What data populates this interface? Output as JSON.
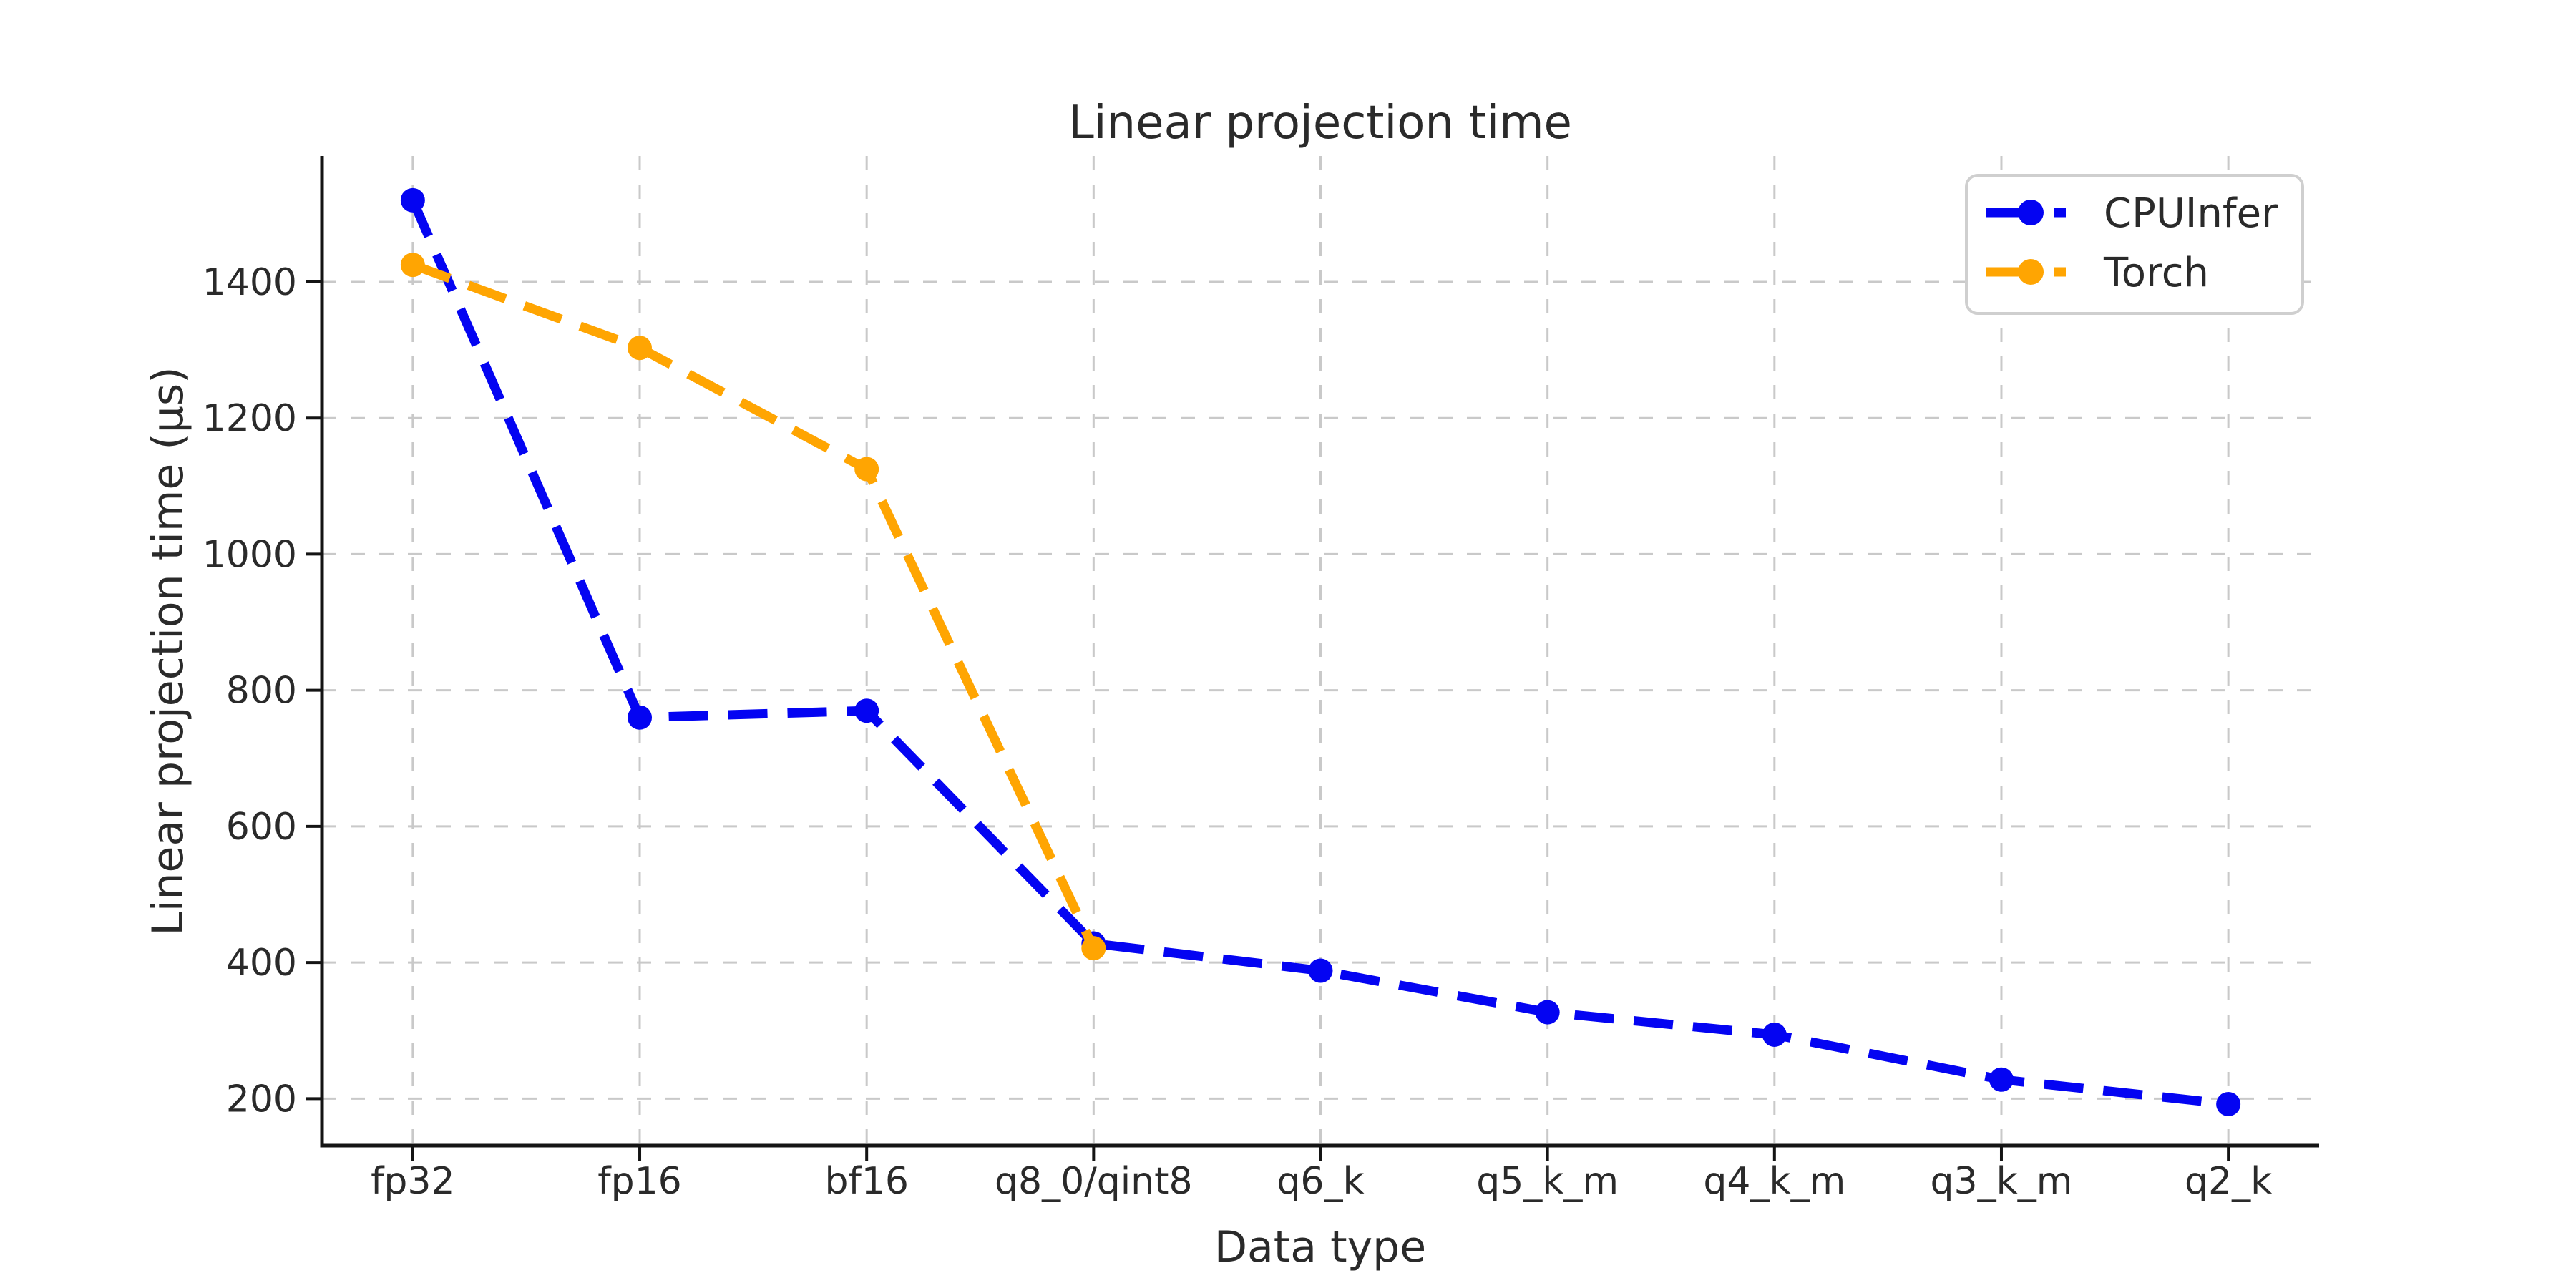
{
  "chart_data": {
    "type": "line",
    "title": "Linear projection time",
    "xlabel": "Data type",
    "ylabel": "Linear projection time (µs)",
    "categories": [
      "fp32",
      "fp16",
      "bf16",
      "q8_0/qint8",
      "q6_k",
      "q5_k_m",
      "q4_k_m",
      "q3_k_m",
      "q2_k"
    ],
    "yticks": [
      200,
      400,
      600,
      800,
      1000,
      1200,
      1400
    ],
    "ylim": [
      131,
      1585
    ],
    "grid": "both-dashed",
    "legend_position": "upper-right",
    "series": [
      {
        "name": "CPUInfer",
        "color": "#0404f2",
        "linestyle": "dashed",
        "marker": "circle",
        "values": [
          1520,
          760,
          770,
          428,
          388,
          327,
          294,
          228,
          192
        ]
      },
      {
        "name": "Torch",
        "color": "#ffa502",
        "linestyle": "dashed",
        "marker": "circle",
        "values": [
          1425,
          1303,
          1125,
          421,
          null,
          null,
          null,
          null,
          null
        ]
      }
    ]
  },
  "colors": {
    "grid": "#c9c9c9",
    "spine": "#141414",
    "text": "#2a2a2a",
    "legend_border": "#cfcfcf",
    "background": "#ffffff"
  }
}
